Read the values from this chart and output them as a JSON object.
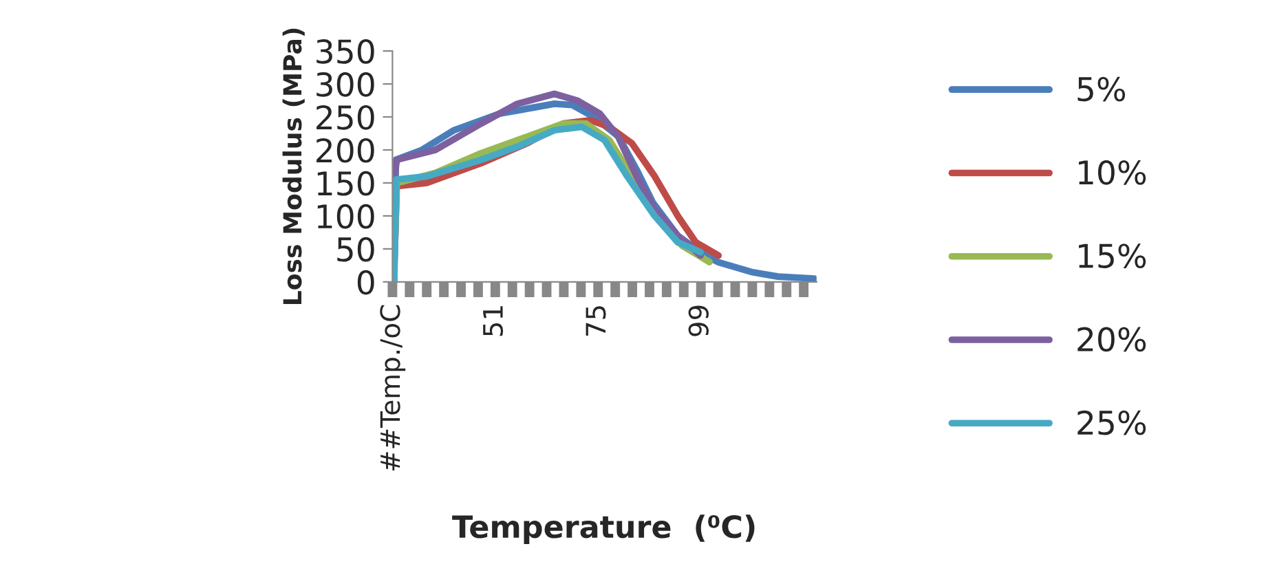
{
  "chart_data": {
    "type": "line",
    "xlabel": "Temperature  (⁰C)",
    "ylabel": "Loss Modulus (MPa)",
    "xlim": [
      27,
      126
    ],
    "ylim": [
      0,
      350
    ],
    "yticks": [
      0,
      50,
      100,
      150,
      200,
      250,
      300,
      350
    ],
    "xticks": [
      {
        "value": 27,
        "label": "##Temp./oC"
      },
      {
        "value": 31,
        "label": null
      },
      {
        "value": 35,
        "label": null
      },
      {
        "value": 39,
        "label": null
      },
      {
        "value": 43,
        "label": null
      },
      {
        "value": 47,
        "label": null
      },
      51,
      {
        "value": 55,
        "label": null
      },
      {
        "value": 59,
        "label": null
      },
      {
        "value": 63,
        "label": null
      },
      {
        "value": 67,
        "label": null
      },
      {
        "value": 71,
        "label": null
      },
      75,
      {
        "value": 79,
        "label": null
      },
      {
        "value": 83,
        "label": null
      },
      {
        "value": 87,
        "label": null
      },
      {
        "value": 91,
        "label": null
      },
      {
        "value": 95,
        "label": null
      },
      99,
      {
        "value": 103,
        "label": null
      },
      {
        "value": 107,
        "label": null
      },
      {
        "value": 111,
        "label": null
      },
      {
        "value": 115,
        "label": null
      },
      {
        "value": 119,
        "label": null
      },
      {
        "value": 123,
        "label": null
      }
    ],
    "grid": false,
    "legend": "right",
    "marker": "none",
    "line_style": "solid",
    "series": [
      {
        "name": "5%",
        "color": "#4a7ebb",
        "x": [
          27.3,
          27.8,
          33.9,
          41.4,
          52,
          60.6,
          64.8,
          69,
          74,
          79.8,
          84,
          87.8,
          93.6,
          100,
          103,
          110.8,
          117,
          125.5
        ],
        "values": [
          0,
          185,
          200,
          230,
          255,
          265,
          270,
          268,
          250,
          220,
          170,
          120,
          70,
          40,
          30,
          15,
          8,
          5
        ]
      },
      {
        "name": "10%",
        "color": "#be4b48",
        "x": [
          27.3,
          28,
          35,
          47.7,
          58.4,
          66.9,
          73.3,
          77.6,
          82.9,
          88.2,
          93.6,
          97.8,
          103.1
        ],
        "values": [
          0,
          145,
          150,
          180,
          210,
          240,
          245,
          235,
          210,
          160,
          100,
          60,
          40
        ]
      },
      {
        "name": "15%",
        "color": "#98b954",
        "x": [
          27.3,
          28,
          37,
          47.7,
          58.4,
          66.9,
          72.2,
          77.6,
          82.9,
          89.3,
          94.6,
          101
        ],
        "values": [
          0,
          150,
          165,
          195,
          220,
          240,
          240,
          215,
          160,
          100,
          55,
          30
        ]
      },
      {
        "name": "20%",
        "color": "#7d60a0",
        "x": [
          27.3,
          27.5,
          28,
          37,
          47.7,
          56.2,
          64.8,
          70.1,
          75.4,
          79.7,
          84,
          88.2,
          93.6,
          98.9
        ],
        "values": [
          0,
          160,
          185,
          200,
          240,
          270,
          285,
          275,
          255,
          220,
          160,
          110,
          70,
          40
        ]
      },
      {
        "name": "25%",
        "color": "#46aac5",
        "x": [
          27.4,
          27.9,
          35,
          47.7,
          56.2,
          64.8,
          71.2,
          76.5,
          81.8,
          88.2,
          93.6,
          98.9
        ],
        "values": [
          0,
          155,
          160,
          185,
          205,
          230,
          235,
          215,
          160,
          100,
          60,
          45
        ]
      }
    ]
  }
}
